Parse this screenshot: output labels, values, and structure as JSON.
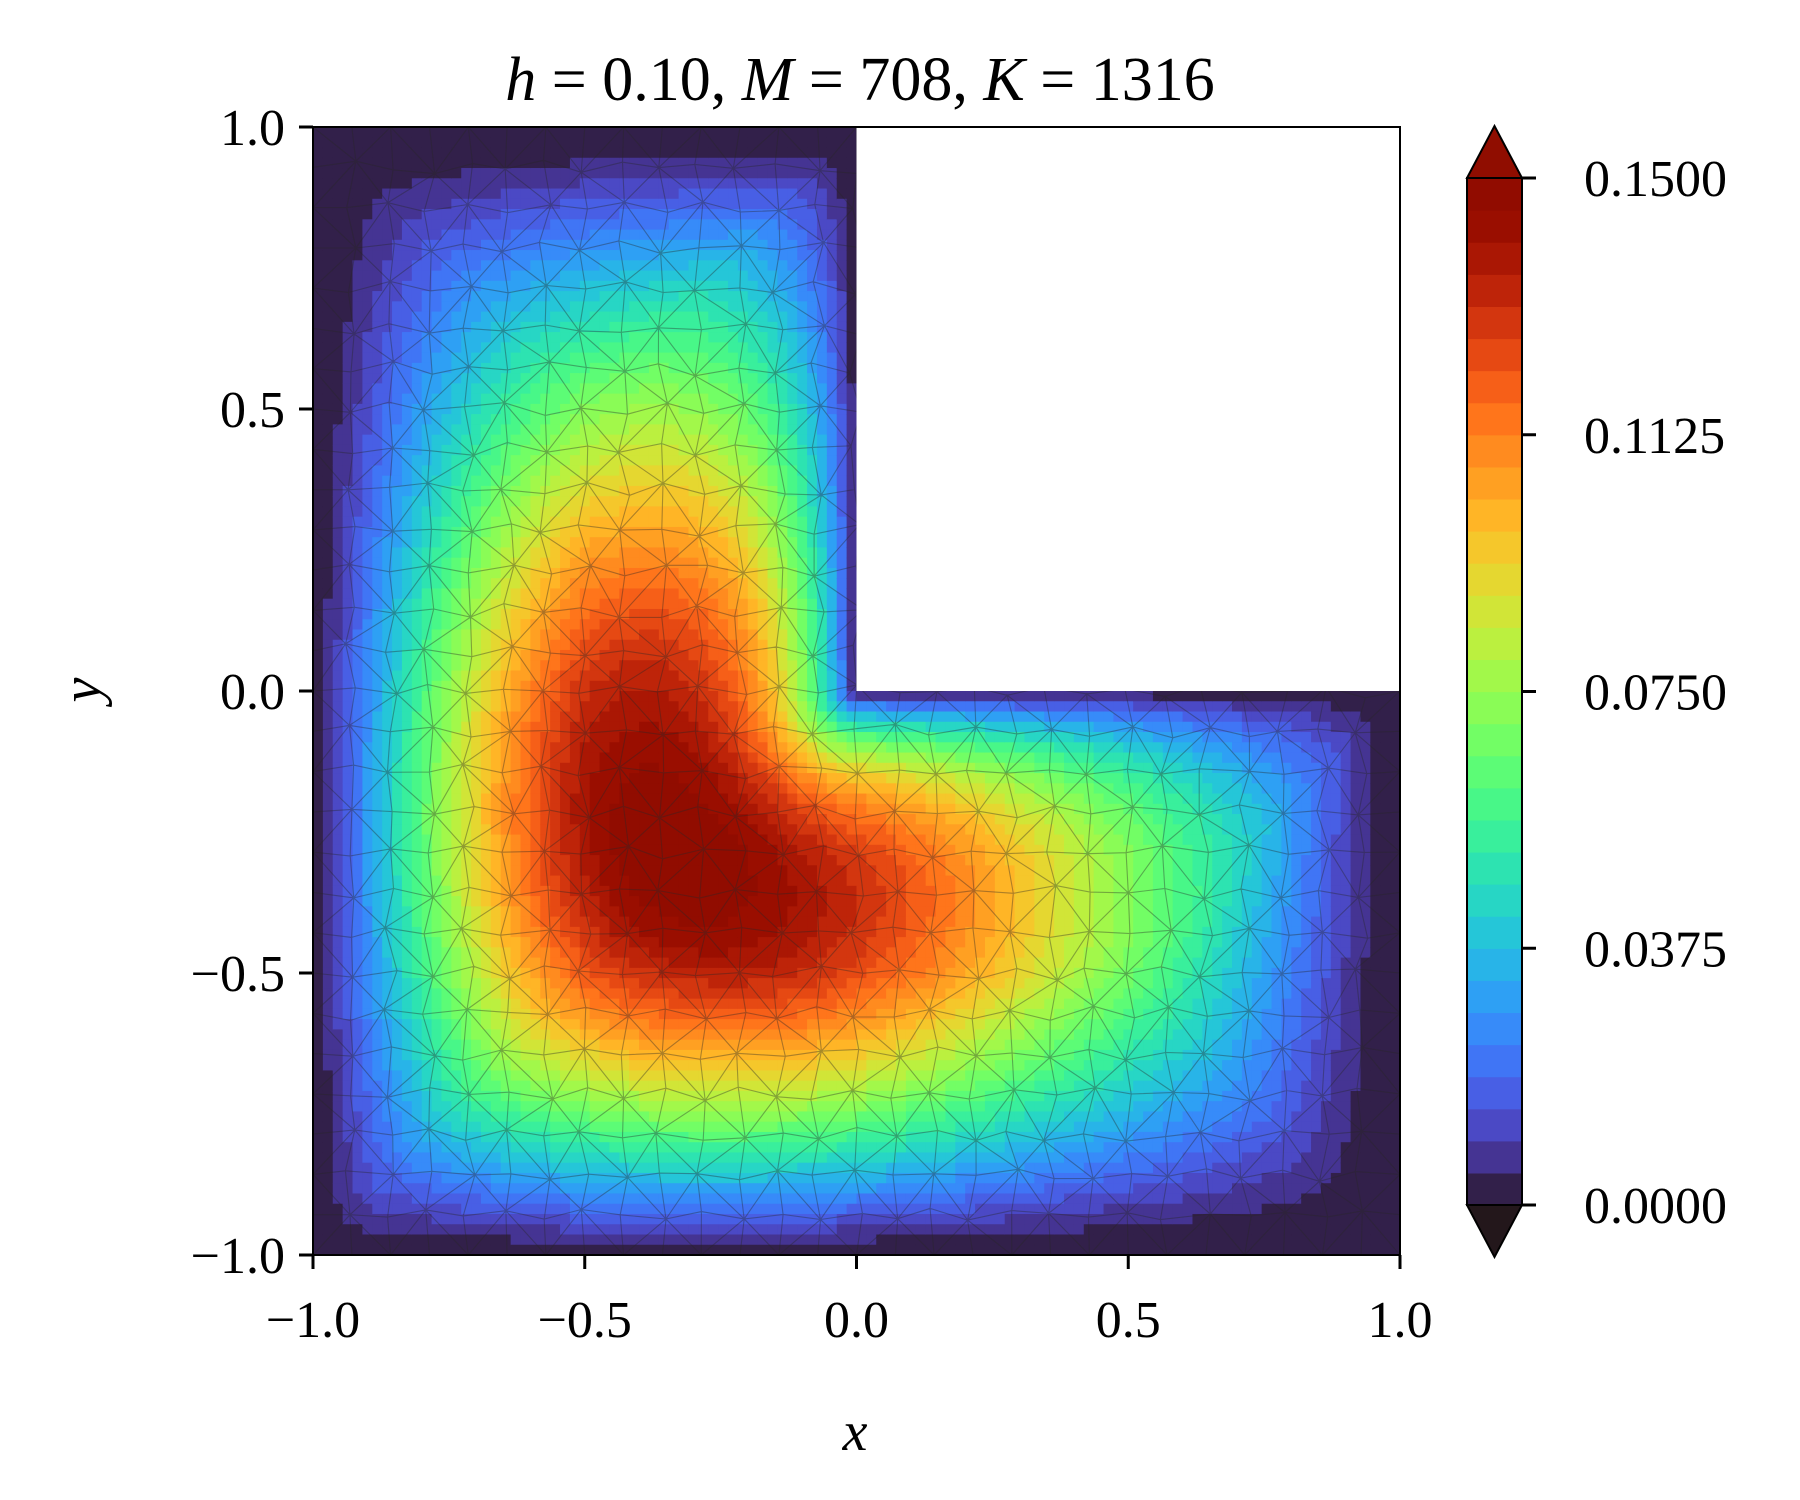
{
  "chart_data": {
    "type": "heatmap",
    "subtype": "triangulated filled contour on L-shaped domain",
    "title": {
      "h_symbol": "h",
      "h_value": "0.10",
      "M_symbol": "M",
      "M_value": "708",
      "K_symbol": "K",
      "K_value": "1316"
    },
    "xlabel": "x",
    "ylabel": "y",
    "xlim": [
      -1.0,
      1.0
    ],
    "ylim": [
      -1.0,
      1.0
    ],
    "x_ticks": [
      "−1.0",
      "−0.5",
      "0.0",
      "0.5",
      "1.0"
    ],
    "x_tick_values": [
      -1.0,
      -0.5,
      0.0,
      0.5,
      1.0
    ],
    "y_ticks": [
      "−1.0",
      "−0.5",
      "0.0",
      "0.5",
      "1.0"
    ],
    "y_tick_values": [
      -1.0,
      -0.5,
      0.0,
      0.5,
      1.0
    ],
    "domain": "L-shape: [-1,1]x[-1,1] minus (0,1]x(0,1]",
    "domain_polygon": [
      [
        -1,
        -1
      ],
      [
        1,
        -1
      ],
      [
        1,
        0
      ],
      [
        0,
        0
      ],
      [
        0,
        1
      ],
      [
        -1,
        1
      ]
    ],
    "value_range": [
      0.0,
      0.15
    ],
    "peak": {
      "x": -0.35,
      "y": -0.3,
      "value": 0.15
    },
    "colormap": "turbo",
    "contour_levels": 32,
    "mesh_visible": true,
    "grid": false,
    "colorbar": {
      "ticks": [
        "0.0000",
        "0.0375",
        "0.0750",
        "0.1125",
        "0.1500"
      ],
      "tick_values": [
        0.0,
        0.0375,
        0.075,
        0.1125,
        0.15
      ],
      "range": [
        0.0,
        0.15
      ],
      "extend": "both",
      "placement": "right"
    }
  }
}
